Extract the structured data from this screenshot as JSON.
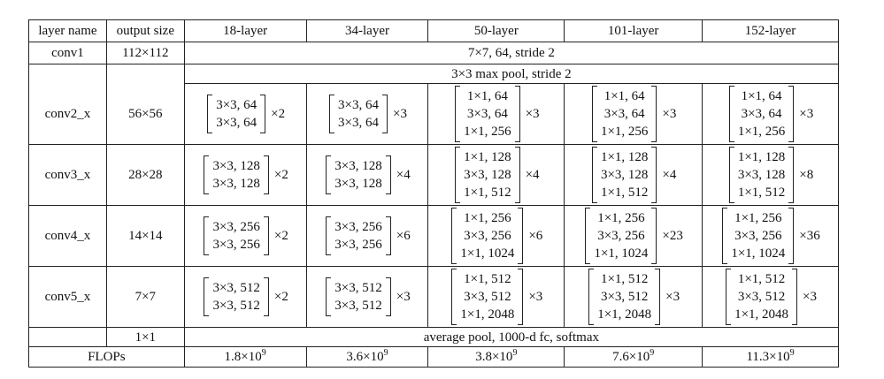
{
  "table": {
    "headers": [
      "layer name",
      "output size",
      "18-layer",
      "34-layer",
      "50-layer",
      "101-layer",
      "152-layer"
    ],
    "conv1": {
      "name": "conv1",
      "size": "112×112",
      "spec": "7×7, 64, stride 2"
    },
    "pool": {
      "spec": "3×3 max pool, stride 2"
    },
    "rows": [
      {
        "name": "conv2_x",
        "size": "56×56",
        "blocks": [
          {
            "lines": [
              "3×3, 64",
              "3×3, 64"
            ],
            "times": "×2"
          },
          {
            "lines": [
              "3×3, 64",
              "3×3, 64"
            ],
            "times": "×3"
          },
          {
            "lines": [
              "1×1, 64",
              "3×3, 64",
              "1×1, 256"
            ],
            "times": "×3"
          },
          {
            "lines": [
              "1×1, 64",
              "3×3, 64",
              "1×1, 256"
            ],
            "times": "×3"
          },
          {
            "lines": [
              "1×1, 64",
              "3×3, 64",
              "1×1, 256"
            ],
            "times": "×3"
          }
        ]
      },
      {
        "name": "conv3_x",
        "size": "28×28",
        "blocks": [
          {
            "lines": [
              "3×3, 128",
              "3×3, 128"
            ],
            "times": "×2"
          },
          {
            "lines": [
              "3×3, 128",
              "3×3, 128"
            ],
            "times": "×4"
          },
          {
            "lines": [
              "1×1, 128",
              "3×3, 128",
              "1×1, 512"
            ],
            "times": "×4"
          },
          {
            "lines": [
              "1×1, 128",
              "3×3, 128",
              "1×1, 512"
            ],
            "times": "×4"
          },
          {
            "lines": [
              "1×1, 128",
              "3×3, 128",
              "1×1, 512"
            ],
            "times": "×8"
          }
        ]
      },
      {
        "name": "conv4_x",
        "size": "14×14",
        "blocks": [
          {
            "lines": [
              "3×3, 256",
              "3×3, 256"
            ],
            "times": "×2"
          },
          {
            "lines": [
              "3×3, 256",
              "3×3, 256"
            ],
            "times": "×6"
          },
          {
            "lines": [
              "1×1, 256",
              "3×3, 256",
              "1×1, 1024"
            ],
            "times": "×6"
          },
          {
            "lines": [
              "1×1, 256",
              "3×3, 256",
              "1×1, 1024"
            ],
            "times": "×23"
          },
          {
            "lines": [
              "1×1, 256",
              "3×3, 256",
              "1×1, 1024"
            ],
            "times": "×36"
          }
        ]
      },
      {
        "name": "conv5_x",
        "size": "7×7",
        "blocks": [
          {
            "lines": [
              "3×3, 512",
              "3×3, 512"
            ],
            "times": "×2"
          },
          {
            "lines": [
              "3×3, 512",
              "3×3, 512"
            ],
            "times": "×3"
          },
          {
            "lines": [
              "1×1, 512",
              "3×3, 512",
              "1×1, 2048"
            ],
            "times": "×3"
          },
          {
            "lines": [
              "1×1, 512",
              "3×3, 512",
              "1×1, 2048"
            ],
            "times": "×3"
          },
          {
            "lines": [
              "1×1, 512",
              "3×3, 512",
              "1×1, 2048"
            ],
            "times": "×3"
          }
        ]
      }
    ],
    "final": {
      "size": "1×1",
      "spec": "average pool, 1000-d fc, softmax"
    },
    "flops": {
      "label": "FLOPs",
      "values": [
        {
          "mant": "1.8×10",
          "exp": "9"
        },
        {
          "mant": "3.6×10",
          "exp": "9"
        },
        {
          "mant": "3.8×10",
          "exp": "9"
        },
        {
          "mant": "7.6×10",
          "exp": "9"
        },
        {
          "mant": "11.3×10",
          "exp": "9"
        }
      ]
    }
  }
}
